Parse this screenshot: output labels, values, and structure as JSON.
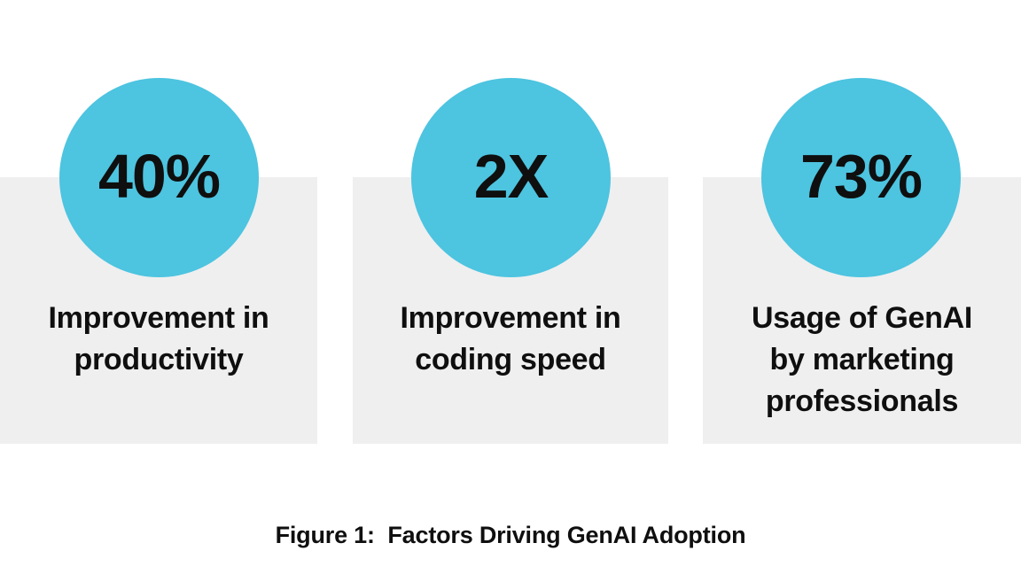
{
  "figure": {
    "caption": "Figure 1:  Factors Driving GenAI Adoption"
  },
  "colors": {
    "circle-blue": "#4DC4E0",
    "card-gray": "#EFEFF0",
    "ink": "#0F0F0F",
    "page-bg": "#FFFFFF"
  },
  "stats": [
    {
      "value": "40%",
      "label": "Improvement in\nproductivity"
    },
    {
      "value": "2X",
      "label": "Improvement in\ncoding speed"
    },
    {
      "value": "73%",
      "label": "Usage of GenAI\nby marketing\nprofessionals"
    }
  ],
  "chart_data": {
    "type": "table",
    "title": "Figure 1: Factors Driving GenAI Adoption",
    "categories": [
      "Improvement in productivity",
      "Improvement in coding speed",
      "Usage of GenAI by marketing professionals"
    ],
    "values": [
      "40%",
      "2X",
      "73%"
    ],
    "legend_position": "none",
    "notes": "Infographic of three stat circles over gray cards"
  }
}
